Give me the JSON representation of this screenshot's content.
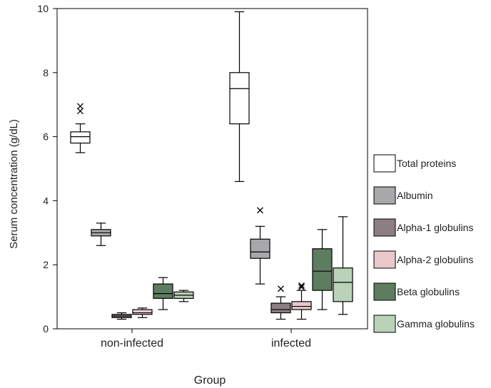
{
  "chart_data": {
    "type": "box",
    "xlabel": "Group",
    "ylabel": "Serum concentration (g/dL)",
    "ylim": [
      0,
      10
    ],
    "yticks": [
      "0",
      "2",
      "4",
      "6",
      "8",
      "10"
    ],
    "categories": [
      "non-infected",
      "infected"
    ],
    "legend_position": "right",
    "series": [
      {
        "name": "Total proteins",
        "color": "#ffffff",
        "boxes": [
          {
            "group": "non-infected",
            "min": 5.5,
            "q1": 5.8,
            "median": 6.0,
            "q3": 6.15,
            "max": 6.4,
            "outliers": [
              6.8,
              6.95
            ]
          },
          {
            "group": "infected",
            "min": 4.6,
            "q1": 6.4,
            "median": 7.5,
            "q3": 8.0,
            "max": 9.9,
            "outliers": []
          }
        ]
      },
      {
        "name": "Albumin",
        "color": "#a8a8ab",
        "boxes": [
          {
            "group": "non-infected",
            "min": 2.6,
            "q1": 2.9,
            "median": 3.0,
            "q3": 3.1,
            "max": 3.3,
            "outliers": []
          },
          {
            "group": "infected",
            "min": 1.4,
            "q1": 2.2,
            "median": 2.4,
            "q3": 2.8,
            "max": 3.2,
            "outliers": [
              3.7
            ]
          }
        ]
      },
      {
        "name": "Alpha-1 globulins",
        "color": "#8c7f84",
        "boxes": [
          {
            "group": "non-infected",
            "min": 0.3,
            "q1": 0.35,
            "median": 0.4,
            "q3": 0.45,
            "max": 0.5,
            "outliers": []
          },
          {
            "group": "infected",
            "min": 0.3,
            "q1": 0.5,
            "median": 0.6,
            "q3": 0.8,
            "max": 1.0,
            "outliers": [
              1.25
            ]
          }
        ]
      },
      {
        "name": "Alpha-2 globulins",
        "color": "#e8c8cc",
        "boxes": [
          {
            "group": "non-infected",
            "min": 0.35,
            "q1": 0.45,
            "median": 0.5,
            "q3": 0.6,
            "max": 0.65,
            "outliers": []
          },
          {
            "group": "infected",
            "min": 0.3,
            "q1": 0.6,
            "median": 0.7,
            "q3": 0.85,
            "max": 1.2,
            "outliers": [
              1.3,
              1.35
            ]
          }
        ]
      },
      {
        "name": "Beta globulins",
        "color": "#5e7d60",
        "boxes": [
          {
            "group": "non-infected",
            "min": 0.6,
            "q1": 0.95,
            "median": 1.1,
            "q3": 1.4,
            "max": 1.6,
            "outliers": []
          },
          {
            "group": "infected",
            "min": 0.6,
            "q1": 1.2,
            "median": 1.8,
            "q3": 2.5,
            "max": 3.1,
            "outliers": []
          }
        ]
      },
      {
        "name": "Gamma globulins",
        "color": "#b9d2b8",
        "boxes": [
          {
            "group": "non-infected",
            "min": 0.85,
            "q1": 0.95,
            "median": 1.05,
            "q3": 1.15,
            "max": 1.2,
            "outliers": []
          },
          {
            "group": "infected",
            "min": 0.45,
            "q1": 0.85,
            "median": 1.45,
            "q3": 1.9,
            "max": 3.5,
            "outliers": []
          }
        ]
      }
    ]
  }
}
